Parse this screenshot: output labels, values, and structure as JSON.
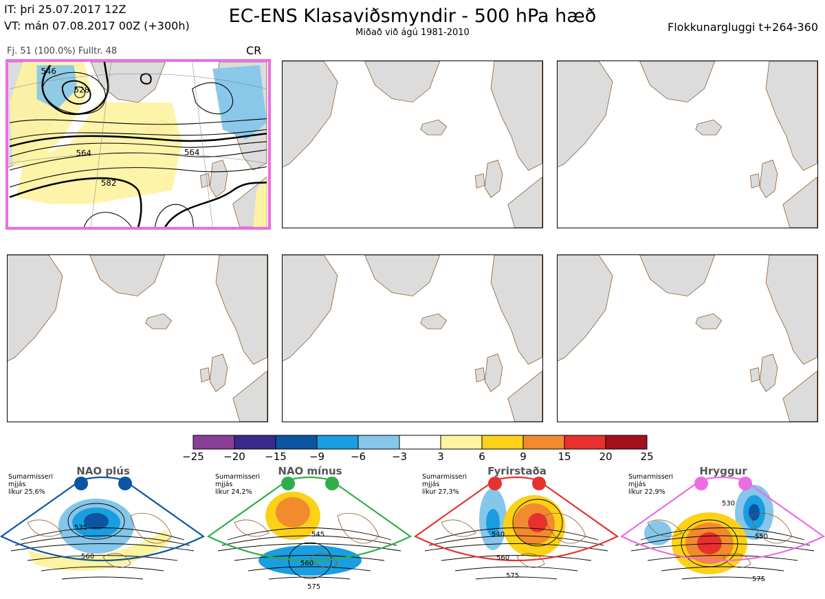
{
  "header": {
    "it": "IT: þri 25.07.2017 12Z",
    "vt": "VT: mán 07.08.2017 00Z  (+300h)",
    "title": "EC-ENS Klasaviðsmyndir - 500 hPa hæð",
    "subtitle": "Miðað við ágú 1981-2010",
    "window": "Flokkunargluggi t+264-360"
  },
  "panel": {
    "info": "Fj. 51 (100.0%)   Fulltr. 48",
    "regime": "CR",
    "contour_labels": [
      "546",
      "564",
      "564",
      "582",
      "528"
    ]
  },
  "scale": {
    "labels": [
      "−25",
      "−20",
      "−15",
      "−9",
      "−6",
      "−3",
      "3",
      "6",
      "9",
      "15",
      "20",
      "25"
    ],
    "colors": [
      "#8a3f97",
      "#3a2a8c",
      "#0b55a2",
      "#1a9ee0",
      "#85c6ea",
      "#ffffff",
      "#fdf3a0",
      "#fcd117",
      "#f28a2e",
      "#e8302e",
      "#a5111b"
    ]
  },
  "colors": {
    "land": "#dcdcdc",
    "coast": "#8b5a2b",
    "highlight": "#ee6be6",
    "positive_anomaly": "#fdf3a0",
    "negative_anomaly": "#85c6ea"
  },
  "regimes": [
    {
      "name": "NAO plús",
      "season": "Sumarmisseri",
      "mean": "mjjás",
      "prob": "líkur 25,6%",
      "color": "#0b55a2",
      "labels": [
        "535",
        "560"
      ]
    },
    {
      "name": "NAO mínus",
      "season": "Sumarmisseri",
      "mean": "mjjás",
      "prob": "líkur 24,2%",
      "color": "#2fae4a",
      "labels": [
        "545",
        "560",
        "575"
      ]
    },
    {
      "name": "Fyrirstaða",
      "season": "Sumarmisseri",
      "mean": "mjjás",
      "prob": "líkur 27,3%",
      "color": "#e8302e",
      "labels": [
        "540",
        "560",
        "575"
      ]
    },
    {
      "name": "Hryggur",
      "season": "Sumarmisseri",
      "mean": "mjjás",
      "prob": "líkur 22,9%",
      "color": "#ee6be6",
      "labels": [
        "530",
        "550",
        "575"
      ]
    }
  ]
}
